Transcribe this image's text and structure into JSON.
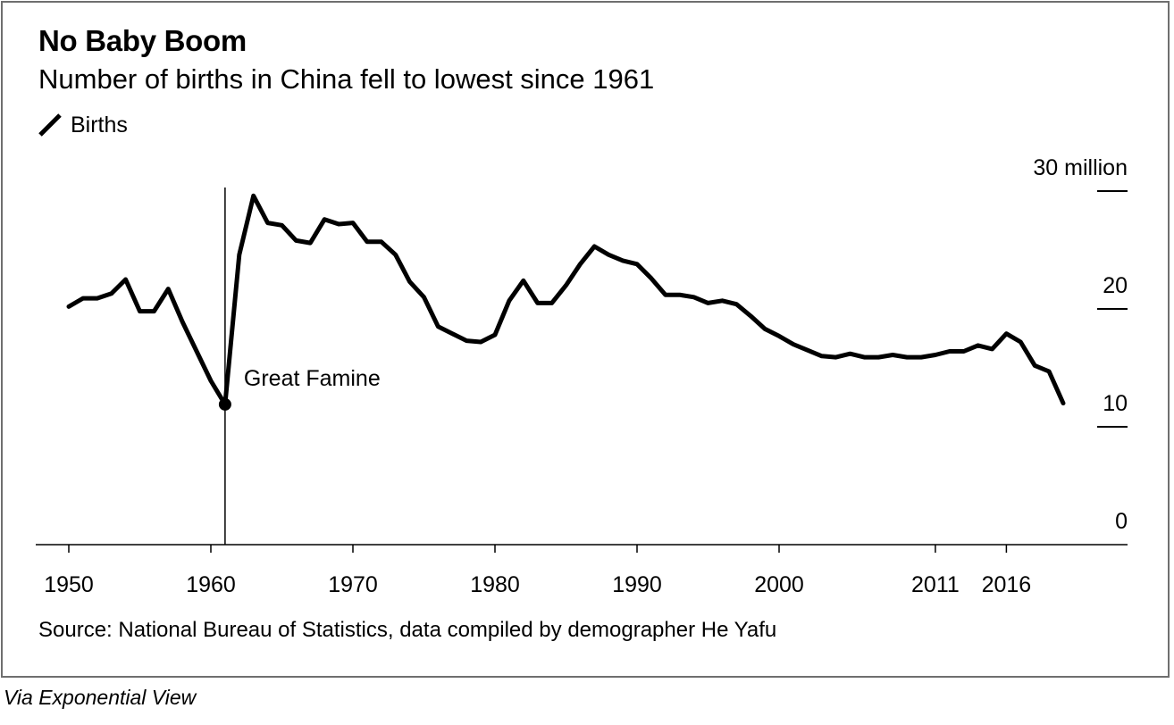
{
  "title": "No Baby Boom",
  "subtitle": "Number of births in China fell to lowest since 1961",
  "legend": {
    "label": "Births",
    "color": "#000000"
  },
  "source": "Source: National Bureau of Statistics, data compiled by demographer He Yafu",
  "via": "Via Exponential View",
  "annotation": {
    "label": "Great Famine",
    "year": 1961,
    "value": 11.9
  },
  "chart_data": {
    "type": "line",
    "y_unit_label": "30 million",
    "xlim": [
      1948,
      2024
    ],
    "ylim": [
      0,
      30
    ],
    "grid": false,
    "legend_position": "top-left",
    "x_ticks": [
      1950,
      1960,
      1970,
      1980,
      1990,
      2000,
      2011,
      2016
    ],
    "y_ticks": [
      {
        "value": 30,
        "label": "30 million"
      },
      {
        "value": 20,
        "label": "20"
      },
      {
        "value": 10,
        "label": "10"
      },
      {
        "value": 0,
        "label": "0"
      }
    ],
    "series": [
      {
        "name": "Births",
        "x": [
          1950,
          1951,
          1952,
          1953,
          1954,
          1955,
          1956,
          1957,
          1958,
          1959,
          1960,
          1961,
          1962,
          1963,
          1964,
          1965,
          1966,
          1967,
          1968,
          1969,
          1970,
          1971,
          1972,
          1973,
          1974,
          1975,
          1976,
          1977,
          1978,
          1979,
          1980,
          1981,
          1982,
          1983,
          1984,
          1985,
          1986,
          1987,
          1988,
          1989,
          1990,
          1991,
          1992,
          1993,
          1994,
          1995,
          1996,
          1997,
          1998,
          1999,
          2000,
          2001,
          2002,
          2003,
          2004,
          2005,
          2006,
          2007,
          2008,
          2009,
          2010,
          2011,
          2012,
          2013,
          2014,
          2015,
          2016,
          2017,
          2018,
          2019,
          2020
        ],
        "y": [
          20.2,
          20.9,
          20.9,
          21.3,
          22.5,
          19.8,
          19.8,
          21.7,
          18.9,
          16.4,
          13.9,
          11.9,
          24.6,
          29.6,
          27.3,
          27.1,
          25.8,
          25.6,
          27.6,
          27.2,
          27.3,
          25.7,
          25.7,
          24.6,
          22.3,
          21.0,
          18.5,
          17.9,
          17.3,
          17.2,
          17.8,
          20.7,
          22.4,
          20.5,
          20.5,
          22.0,
          23.8,
          25.3,
          24.6,
          24.1,
          23.8,
          22.6,
          21.2,
          21.2,
          21.0,
          20.5,
          20.7,
          20.4,
          19.4,
          18.3,
          17.7,
          17.0,
          16.5,
          16.0,
          15.9,
          16.2,
          15.9,
          15.9,
          16.1,
          15.9,
          15.9,
          16.1,
          16.4,
          16.4,
          16.9,
          16.6,
          17.9,
          17.2,
          15.2,
          14.7,
          12.0
        ]
      }
    ]
  }
}
